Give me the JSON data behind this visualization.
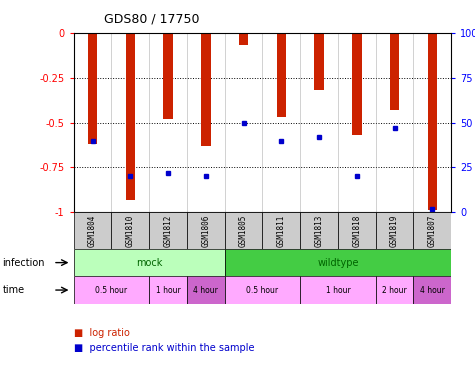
{
  "title": "GDS80 / 17750",
  "samples": [
    "GSM1804",
    "GSM1810",
    "GSM1812",
    "GSM1806",
    "GSM1805",
    "GSM1811",
    "GSM1813",
    "GSM1818",
    "GSM1819",
    "GSM1807"
  ],
  "log_ratio": [
    -0.62,
    -0.93,
    -0.48,
    -0.63,
    -0.07,
    -0.47,
    -0.32,
    -0.57,
    -0.43,
    -0.99
  ],
  "percentile": [
    40,
    20,
    22,
    20,
    50,
    40,
    42,
    20,
    47,
    2
  ],
  "bar_color": "#cc2200",
  "dot_color": "#0000cc",
  "mock_color": "#bbffbb",
  "wildtype_color": "#44cc44",
  "time_pink": "#ffaaff",
  "time_purple": "#cc66cc",
  "ylim_left": [
    -1,
    0
  ],
  "ylim_right": [
    0,
    100
  ],
  "yticks_left": [
    -1,
    -0.75,
    -0.5,
    -0.25,
    0
  ],
  "yticks_right": [
    0,
    25,
    50,
    75,
    100
  ]
}
